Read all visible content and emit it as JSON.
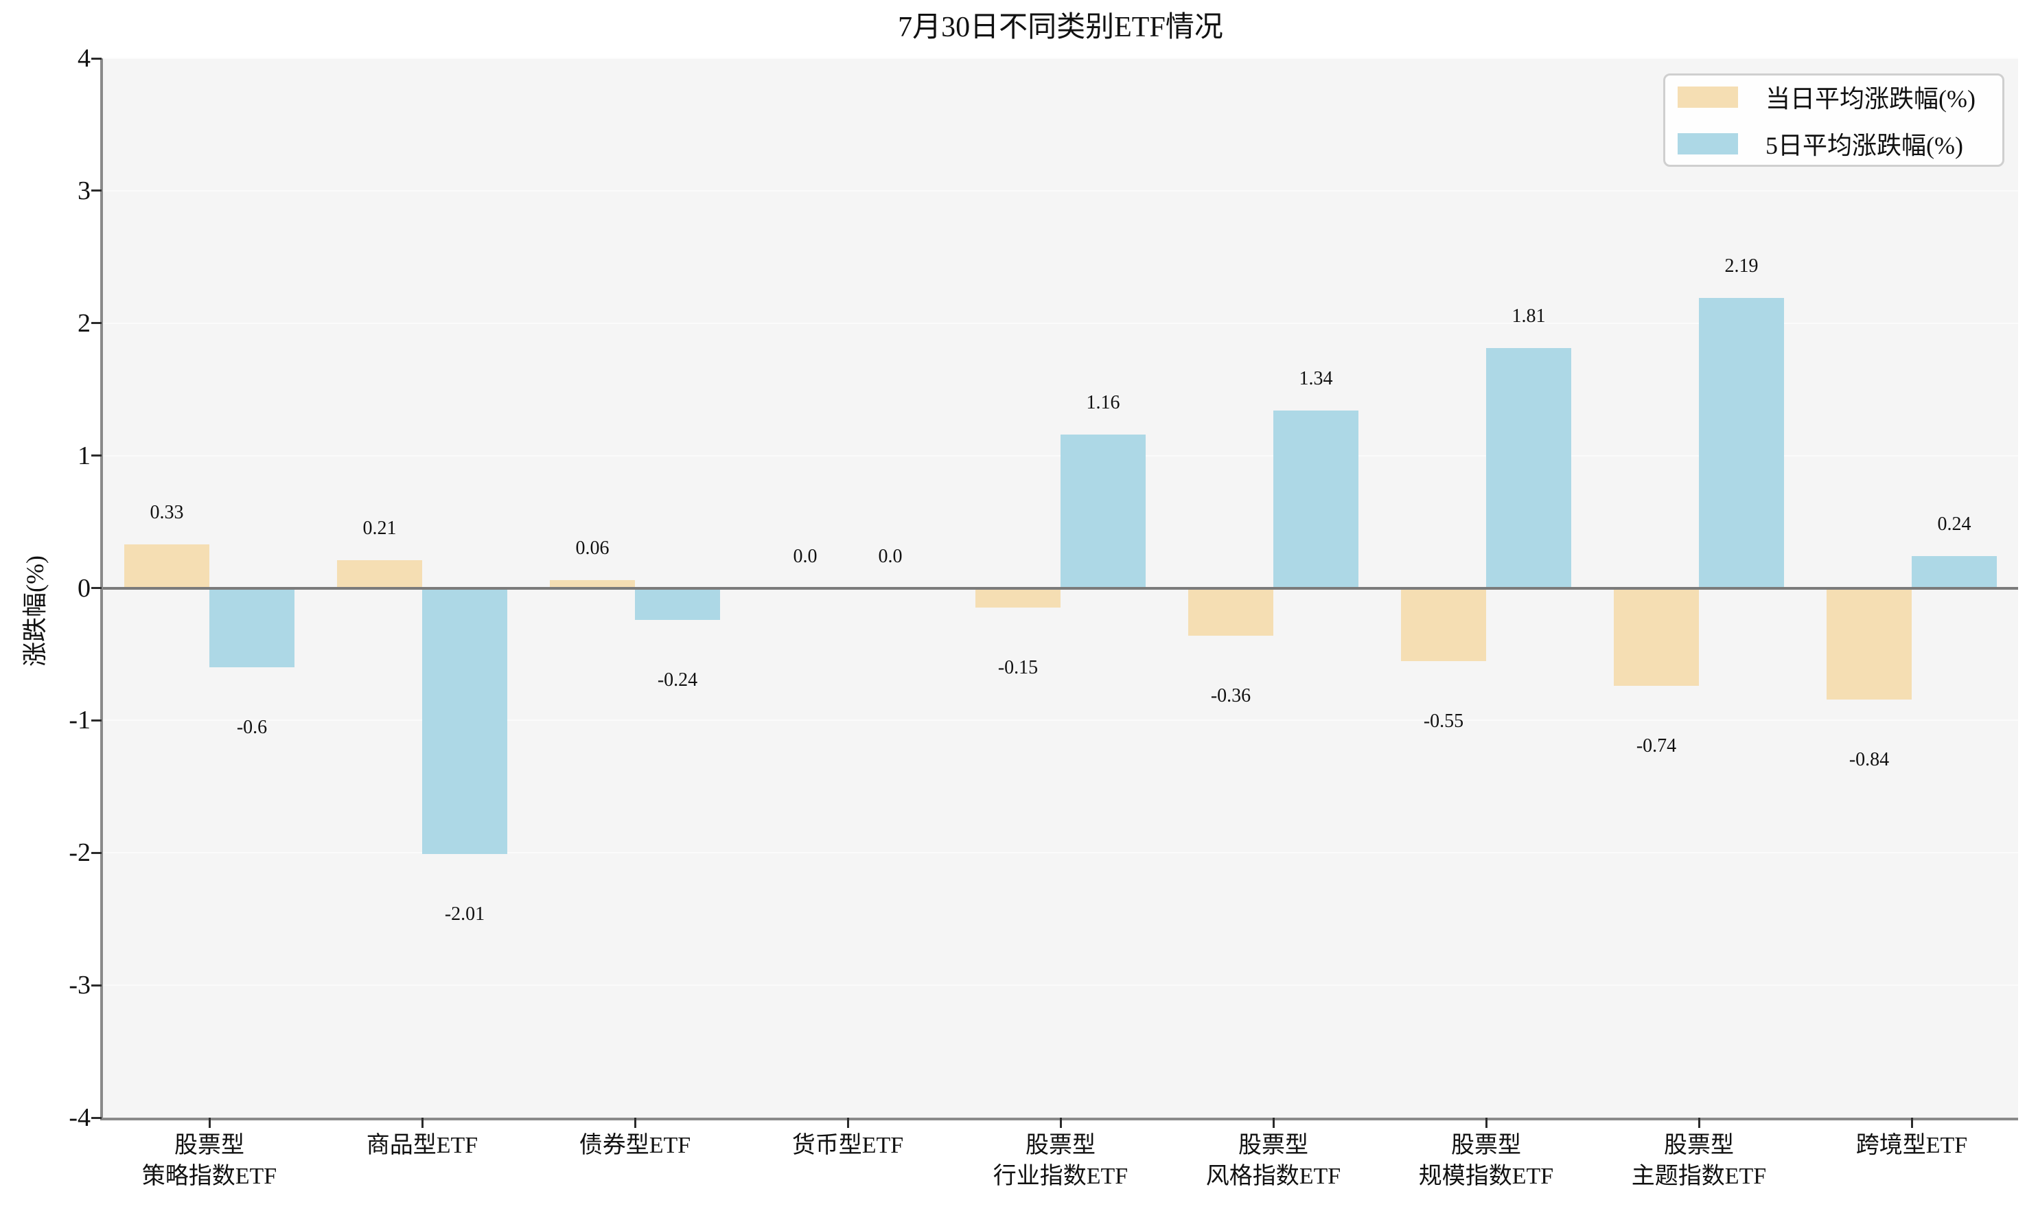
{
  "title": "7月30日不同类别ETF情况",
  "y_axis": {
    "label": "涨跌幅(%)",
    "ticks": [
      -4,
      -3,
      -2,
      -1,
      0,
      1,
      2,
      3,
      4
    ],
    "range": [
      -4,
      4
    ]
  },
  "legend": {
    "items": [
      {
        "label": "当日平均涨跌幅(%)",
        "color": "#f5deb3"
      },
      {
        "label": "5日平均涨跌幅(%)",
        "color": "#add8e6"
      }
    ]
  },
  "colors": {
    "daily_series": "#f5deb3",
    "five_day_series": "#add8e6",
    "plot_background": "#f5f5f5",
    "figure_background": "#ffffff",
    "zero_line": "#7b7b7b"
  },
  "chart_data": {
    "type": "bar",
    "title": "7月30日不同类别ETF情况",
    "xlabel": "",
    "ylabel": "涨跌幅(%)",
    "ylim": [
      -4,
      4
    ],
    "yticks": [
      -4,
      -3,
      -2,
      -1,
      0,
      1,
      2,
      3,
      4
    ],
    "grid": "horizontal",
    "legend_position": "upper right",
    "categories": [
      "股票型\n策略指数ETF",
      "商品型ETF",
      "债券型ETF",
      "货币型ETF",
      "股票型\n行业指数ETF",
      "股票型\n风格指数ETF",
      "股票型\n规模指数ETF",
      "股票型\n主题指数ETF",
      "跨境型ETF"
    ],
    "series": [
      {
        "name": "当日平均涨跌幅(%)",
        "color": "#f5deb3",
        "values": [
          0.33,
          0.21,
          0.06,
          0.0,
          -0.15,
          -0.36,
          -0.55,
          -0.74,
          -0.84
        ],
        "labels": [
          "0.33",
          "0.21",
          "0.06",
          "0.0",
          "-0.15",
          "-0.36",
          "-0.55",
          "-0.74",
          "-0.84"
        ]
      },
      {
        "name": "5日平均涨跌幅(%)",
        "color": "#add8e6",
        "values": [
          -0.6,
          -2.01,
          -0.24,
          0.0,
          1.16,
          1.34,
          1.81,
          2.19,
          0.24
        ],
        "labels": [
          "-0.6",
          "-2.01",
          "-0.24",
          "0.0",
          "1.16",
          "1.34",
          "1.81",
          "2.19",
          "0.24"
        ]
      }
    ]
  }
}
